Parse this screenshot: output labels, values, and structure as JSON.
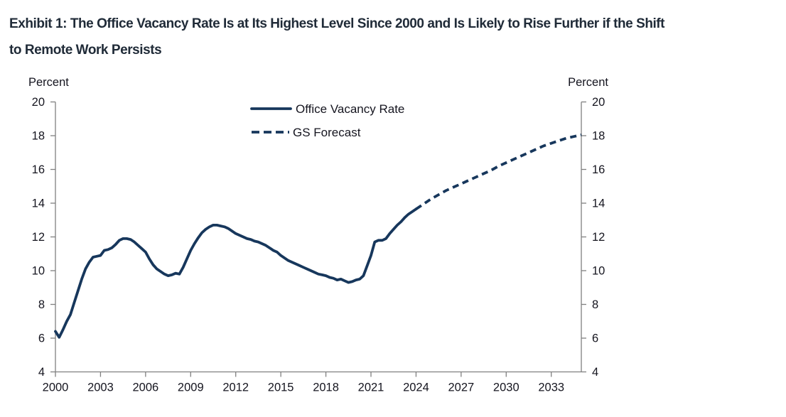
{
  "title": {
    "line1": "Exhibit 1: The Office Vacancy Rate Is at Its Highest Level Since 2000 and Is Likely to Rise Further if the Shift",
    "line2": "to Remote Work Persists"
  },
  "chart_data": {
    "type": "line",
    "title": "Exhibit 1: The Office Vacancy Rate Is at Its Highest Level Since 2000 and Is Likely to Rise Further if the Shift to Remote Work Persists",
    "ylabel_left": "Percent",
    "ylabel_right": "Percent",
    "xlabel": "",
    "ylim": [
      4,
      20
    ],
    "y_ticks": [
      4,
      6,
      8,
      10,
      12,
      14,
      16,
      18,
      20
    ],
    "xlim": [
      2000,
      2035
    ],
    "x_ticks": [
      2000,
      2003,
      2006,
      2009,
      2012,
      2015,
      2018,
      2021,
      2024,
      2027,
      2030,
      2033
    ],
    "grid": false,
    "legend_position": "top-center-inside",
    "line_color": "#17375c",
    "axis_color": "#808080",
    "text_color": "#15151f",
    "title_color": "#202b38",
    "series": [
      {
        "name": "Office Vacancy Rate",
        "style": "solid",
        "x_start": 2000,
        "x_step": 0.25,
        "x_unit": "year-quarterly",
        "values": [
          6.4,
          6.05,
          6.5,
          7.0,
          7.4,
          8.1,
          8.8,
          9.5,
          10.1,
          10.5,
          10.8,
          10.85,
          10.9,
          11.2,
          11.25,
          11.35,
          11.55,
          11.8,
          11.9,
          11.9,
          11.85,
          11.7,
          11.5,
          11.3,
          11.1,
          10.7,
          10.35,
          10.1,
          9.95,
          9.8,
          9.7,
          9.75,
          9.85,
          9.8,
          10.2,
          10.7,
          11.2,
          11.6,
          11.95,
          12.25,
          12.45,
          12.6,
          12.7,
          12.7,
          12.65,
          12.6,
          12.5,
          12.35,
          12.2,
          12.1,
          12.0,
          11.9,
          11.85,
          11.75,
          11.7,
          11.6,
          11.5,
          11.35,
          11.2,
          11.1,
          10.9,
          10.75,
          10.6,
          10.5,
          10.4,
          10.3,
          10.2,
          10.1,
          10.0,
          9.9,
          9.8,
          9.75,
          9.7,
          9.6,
          9.55,
          9.45,
          9.5,
          9.4,
          9.3,
          9.35,
          9.45,
          9.5,
          9.7,
          10.3,
          10.9,
          11.7,
          11.8,
          11.8,
          11.9,
          12.2,
          12.45,
          12.7,
          12.9,
          13.15,
          13.35,
          13.5,
          13.65
        ]
      },
      {
        "name": "GS Forecast",
        "style": "dashed",
        "x_start": 2024,
        "x_step": 0.5,
        "x_unit": "year-semiannual",
        "values": [
          13.65,
          13.95,
          14.25,
          14.5,
          14.75,
          14.95,
          15.15,
          15.35,
          15.55,
          15.75,
          15.95,
          16.2,
          16.4,
          16.6,
          16.8,
          17.0,
          17.2,
          17.4,
          17.55,
          17.7,
          17.85,
          17.95,
          18.05
        ]
      }
    ]
  }
}
